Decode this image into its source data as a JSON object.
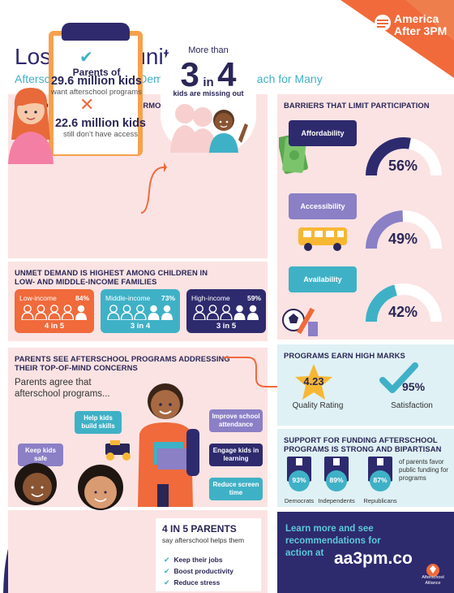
{
  "header": {
    "title": "Lost Opportunity",
    "subtitle": "Afterschool Programs in Demand, But Out of Reach for Many",
    "logo": {
      "line1": "America",
      "line2": "After 3PM"
    }
  },
  "demand": {
    "title": "DEMAND FOR PROGRAMS IS ENORMOUS",
    "parents_of": "Parents of",
    "kids_want": "29.6 million kids",
    "want_text": "want afterschool programs",
    "kids_no_access": "22.6 million kids",
    "no_access_text": "still don't have access",
    "more_than": "More than",
    "three": "3",
    "in": "in",
    "four": "4",
    "missing_out": "kids are missing out"
  },
  "unmet": {
    "title_line1": "UNMET DEMAND IS HIGHEST AMONG CHILDREN IN",
    "title_line2": "LOW- AND MIDDLE-INCOME FAMILIES",
    "groups": [
      {
        "label": "Low-income",
        "pct": "84%",
        "ratio": "4 in 5",
        "filled": 4,
        "color": "#f06a3b"
      },
      {
        "label": "Middle-income",
        "pct": "73%",
        "ratio": "3 in 4",
        "filled": 3,
        "color": "#3fb1c6"
      },
      {
        "label": "High-income",
        "pct": "59%",
        "ratio": "3 in 5",
        "filled": 3,
        "color": "#2e2a6e"
      }
    ]
  },
  "parents": {
    "title_line1": "PARENTS SEE AFTERSCHOOL PROGRAMS ADDRESSING",
    "title_line2": "THEIR TOP-OF-MIND CONCERNS",
    "agree": "Parents agree that afterschool programs...",
    "pills": {
      "help_kids": "Help kids build skills",
      "keep_safe": "Keep kids safe",
      "improve": "Improve school attendance",
      "engage": "Engage kids in learning",
      "reduce_screen": "Reduce screen time"
    }
  },
  "four_in_five": {
    "title": "4 IN 5 PARENTS",
    "sub": "say afterschool helps them",
    "items": [
      "Keep their jobs",
      "Boost productivity",
      "Reduce stress"
    ]
  },
  "barriers": {
    "title": "BARRIERS THAT LIMIT PARTICIPATION",
    "items": [
      {
        "label": "Affordability",
        "pct": "56%",
        "value": 0.56,
        "color": "#2e2a6e"
      },
      {
        "label": "Accessibility",
        "pct": "49%",
        "value": 0.49,
        "color": "#8b7fc6"
      },
      {
        "label": "Availability",
        "pct": "42%",
        "value": 0.42,
        "color": "#3fb1c6"
      }
    ]
  },
  "marks": {
    "title": "PROGRAMS EARN HIGH MARKS",
    "quality_value": "4.23",
    "quality_label": "Quality Rating",
    "satisfaction_value": "95%",
    "satisfaction_label": "Satisfaction"
  },
  "funding": {
    "title_line1": "SUPPORT FOR FUNDING AFTERSCHOOL",
    "title_line2": "PROGRAMS IS STRONG AND BIPARTISAN",
    "parties": [
      {
        "name": "Democrats",
        "pct": "93%"
      },
      {
        "name": "Independents",
        "pct": "89%"
      },
      {
        "name": "Republicans",
        "pct": "87%"
      }
    ],
    "favor_text": "of parents favor public funding for programs"
  },
  "cta": {
    "text": "Learn more and see recommendations for action at",
    "url": "aa3pm.co",
    "alliance": "Afterschool Alliance"
  },
  "colors": {
    "navy": "#2e2a6e",
    "teal": "#3fb1c6",
    "orange": "#f06a3b",
    "purple": "#8b7fc6",
    "pink_bg": "#fbe3e3",
    "blue_bg": "#dff1f4"
  }
}
